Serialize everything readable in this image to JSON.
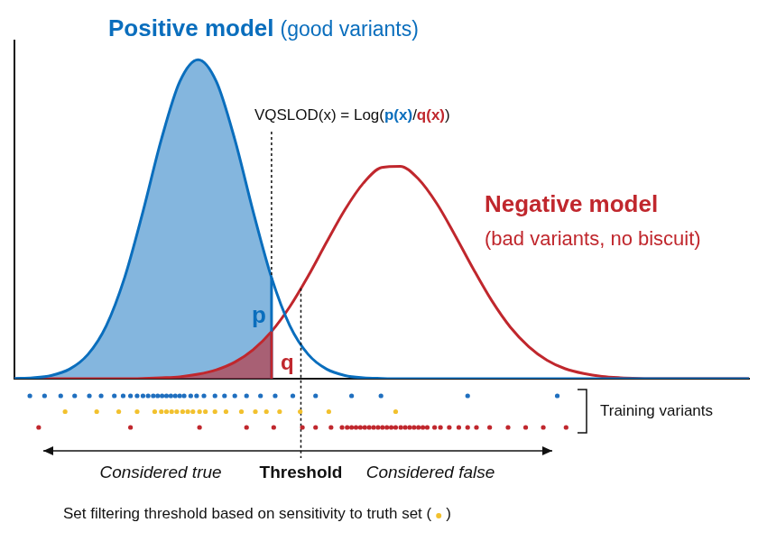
{
  "chart_data": {
    "type": "line",
    "xlim": [
      0,
      100
    ],
    "ylim": [
      0,
      106
    ],
    "tick_labels": false,
    "grid": false,
    "x": [
      0,
      2.5,
      5,
      7.5,
      10,
      12.5,
      15,
      17.5,
      20,
      22.5,
      25,
      27.5,
      30,
      32.5,
      35,
      37.5,
      40,
      42.5,
      45,
      47.5,
      50,
      52.5,
      55,
      57.5,
      60,
      62.5,
      65,
      67.5,
      70,
      72.5,
      75,
      77.5,
      80,
      82.5,
      85,
      87.5,
      90,
      92.5,
      95,
      97.5,
      100
    ],
    "series": [
      {
        "name": "Positive model",
        "subtitle": "(good variants)",
        "color": "#0a6ebd",
        "values": [
          0.1,
          0.3,
          1.0,
          3.0,
          7.6,
          16.6,
          31.7,
          52.4,
          75.0,
          93.1,
          100,
          93.1,
          75.0,
          52.4,
          31.7,
          16.6,
          7.6,
          3.0,
          1.0,
          0.3,
          0.1,
          0,
          0,
          0,
          0,
          0,
          0,
          0,
          0,
          0,
          0,
          0,
          0,
          0,
          0,
          0,
          0,
          0,
          0,
          0,
          0
        ]
      },
      {
        "name": "Negative model",
        "subtitle": "(bad variants, no biscuit)",
        "color": "#c0272d",
        "values": [
          0,
          0,
          0,
          0,
          0,
          0,
          0,
          0.1,
          0.3,
          0.6,
          1.4,
          2.8,
          5.2,
          9.1,
          14.8,
          22.6,
          32.2,
          42.8,
          53.0,
          61.3,
          66.2,
          66.6,
          62.6,
          54.9,
          44.9,
          34.3,
          24.4,
          16.2,
          10.1,
          5.8,
          3.1,
          1.6,
          0.7,
          0.3,
          0.1,
          0,
          0,
          0,
          0,
          0,
          0
        ]
      }
    ],
    "annotations": {
      "formula": [
        "VQSLOD(x) = Log(",
        "p(x)",
        "/",
        "q(x)",
        ")"
      ],
      "formula_x": 35,
      "p_label": "p",
      "q_label": "q",
      "threshold_x": 39,
      "threshold_label": "Threshold",
      "left_label": "Considered true",
      "right_label": "Considered false",
      "note": [
        "Set filtering threshold based on sensitivity to truth set (",
        ")"
      ]
    },
    "training_variants": {
      "label": "Training variants",
      "strips": [
        {
          "color": "#1f6fbf",
          "x": [
            2.1,
            4.1,
            6.3,
            8.2,
            10.2,
            11.8,
            13.6,
            14.8,
            15.8,
            16.7,
            17.5,
            18.2,
            18.9,
            19.5,
            20.1,
            20.7,
            21.3,
            21.9,
            22.5,
            23.1,
            24.0,
            24.8,
            25.8,
            27.3,
            28.6,
            30.0,
            31.6,
            33.5,
            35.5,
            37.9,
            41.0,
            45.9,
            49.9,
            61.7,
            73.9
          ]
        },
        {
          "color": "#f2c12e",
          "x": [
            6.9,
            11.2,
            14.2,
            16.7,
            19.1,
            20.0,
            20.7,
            21.4,
            22.1,
            22.9,
            23.6,
            24.3,
            25.2,
            26.0,
            27.3,
            28.8,
            30.9,
            32.8,
            34.3,
            36.1,
            38.9,
            42.8,
            51.9
          ]
        },
        {
          "color": "#c0272d",
          "x": [
            3.3,
            15.8,
            25.2,
            31.6,
            35.3,
            39.2,
            41.0,
            43.1,
            44.6,
            45.3,
            45.9,
            46.5,
            47.1,
            47.7,
            48.3,
            48.9,
            49.5,
            50.1,
            50.7,
            51.3,
            51.9,
            52.6,
            53.2,
            53.8,
            54.4,
            55.0,
            55.6,
            56.2,
            57.2,
            58.0,
            59.2,
            60.5,
            61.7,
            62.9,
            64.7,
            67.2,
            69.6,
            72.0,
            75.1
          ]
        }
      ]
    }
  }
}
